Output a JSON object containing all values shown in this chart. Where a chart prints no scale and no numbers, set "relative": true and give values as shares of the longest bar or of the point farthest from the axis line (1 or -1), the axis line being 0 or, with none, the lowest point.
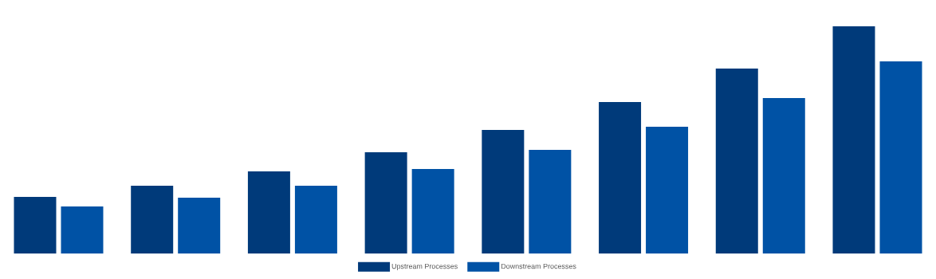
{
  "chart_data": {
    "type": "bar",
    "relative": true,
    "legend": "bottom",
    "categories": [
      null,
      null,
      null,
      null,
      null,
      null,
      null,
      null
    ],
    "series": [
      {
        "name": "Upstream Processes",
        "color": "#003a7a",
        "values": [
          0.249,
          0.298,
          0.361,
          0.446,
          0.544,
          0.667,
          0.814,
          1
        ]
      },
      {
        "name": "Downstream Processes",
        "color": "#0052a5",
        "values": [
          0.207,
          0.246,
          0.298,
          0.372,
          0.456,
          0.558,
          0.684,
          0.846
        ]
      }
    ]
  }
}
